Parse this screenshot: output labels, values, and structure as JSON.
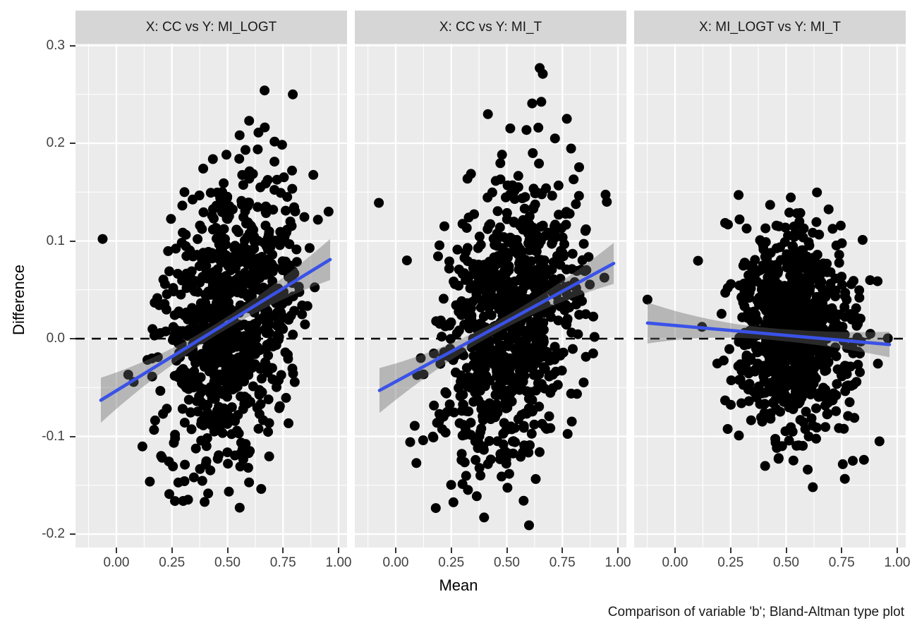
{
  "chart_data": {
    "type": "scatter",
    "title": "",
    "caption": "Comparison of variable 'b'; Bland-Altman type plot",
    "x_axis": {
      "label": "Mean",
      "ticks": [
        0,
        0.25,
        0.5,
        0.75,
        1.0
      ],
      "tick_labels": [
        "0.00",
        "0.25",
        "0.50",
        "0.75",
        "1.00"
      ],
      "minor_ticks": [
        -0.125,
        0.125,
        0.375,
        0.625,
        0.875
      ],
      "range": [
        -0.184,
        1.038
      ]
    },
    "y_axis": {
      "label": "Difference",
      "ticks": [
        0.3,
        0.2,
        0.1,
        0.0,
        -0.1,
        -0.2
      ],
      "tick_labels": [
        "0.3",
        "0.2",
        "0.1",
        "0.0",
        "-0.1",
        "-0.2"
      ],
      "minor_ticks": [
        0.25,
        0.15,
        0.05,
        -0.05,
        -0.15
      ],
      "range": [
        -0.2137,
        0.3018
      ]
    },
    "reference_hline_y": 0,
    "grid": "major-and-minor-white-on-grey",
    "legend": "none",
    "facets": [
      {
        "title": "X: CC vs Y: MI_LOGT",
        "smooth_line": {
          "x0": -0.07,
          "y0": -0.063,
          "x1": 0.962,
          "y1": 0.081
        },
        "confidence_band": {
          "half_width_left": 0.023,
          "half_width_mid": 0.006,
          "half_width_right": 0.021
        },
        "cloud": {
          "n": 870,
          "seed": 101,
          "mean": [
            0.53,
            0.02
          ],
          "sd": [
            0.155,
            0.074
          ],
          "corr": 0.28,
          "x_clamp": [
            -0.05,
            0.978
          ],
          "y_clamp": [
            -0.175,
            0.258
          ]
        },
        "notable_points": [
          [
            -0.062,
            0.102
          ],
          [
            0.667,
            0.254
          ],
          [
            0.794,
            0.25
          ],
          [
            0.555,
            -0.173
          ],
          [
            0.238,
            -0.159
          ],
          [
            0.955,
            0.13
          ]
        ]
      },
      {
        "title": "X: CC vs Y: MI_T",
        "smooth_line": {
          "x0": -0.073,
          "y0": -0.053,
          "x1": 0.981,
          "y1": 0.077
        },
        "confidence_band": {
          "half_width_left": 0.023,
          "half_width_mid": 0.006,
          "half_width_right": 0.021
        },
        "cloud": {
          "n": 870,
          "seed": 202,
          "mean": [
            0.52,
            0.018
          ],
          "sd": [
            0.155,
            0.074
          ],
          "corr": 0.27,
          "x_clamp": [
            -0.05,
            0.982
          ],
          "y_clamp": [
            -0.186,
            0.272
          ]
        },
        "notable_points": [
          [
            -0.076,
            0.139
          ],
          [
            0.648,
            0.277
          ],
          [
            0.662,
            0.271
          ],
          [
            0.6,
            -0.191
          ],
          [
            0.95,
            0.14
          ],
          [
            0.77,
            0.225
          ]
        ]
      },
      {
        "title": "X: MI_LOGT vs Y: MI_T",
        "smooth_line": {
          "x0": -0.124,
          "y0": 0.016,
          "x1": 0.965,
          "y1": -0.006
        },
        "confidence_band": {
          "half_width_left": 0.021,
          "half_width_mid": 0.006,
          "half_width_right": 0.013
        },
        "cloud": {
          "n": 840,
          "seed": 303,
          "mean": [
            0.535,
            0.01
          ],
          "sd": [
            0.125,
            0.053
          ],
          "corr": -0.05,
          "x_clamp": [
            0.1,
            0.97
          ],
          "y_clamp": [
            -0.15,
            0.15
          ]
        },
        "notable_points": [
          [
            -0.124,
            0.04
          ],
          [
            0.286,
            0.147
          ],
          [
            0.8,
            -0.125
          ],
          [
            0.85,
            -0.124
          ],
          [
            0.62,
            -0.152
          ]
        ]
      }
    ],
    "colors": {
      "panel_background": "#ebebeb",
      "strip_background": "#d6d6d6",
      "gridline": "#ffffff",
      "point": "#000000",
      "smooth_line": "#3a52e8",
      "confidence_band": "rgba(102,102,102,0.40)",
      "reference_line": "#000000",
      "tick_text": "#404040"
    }
  }
}
